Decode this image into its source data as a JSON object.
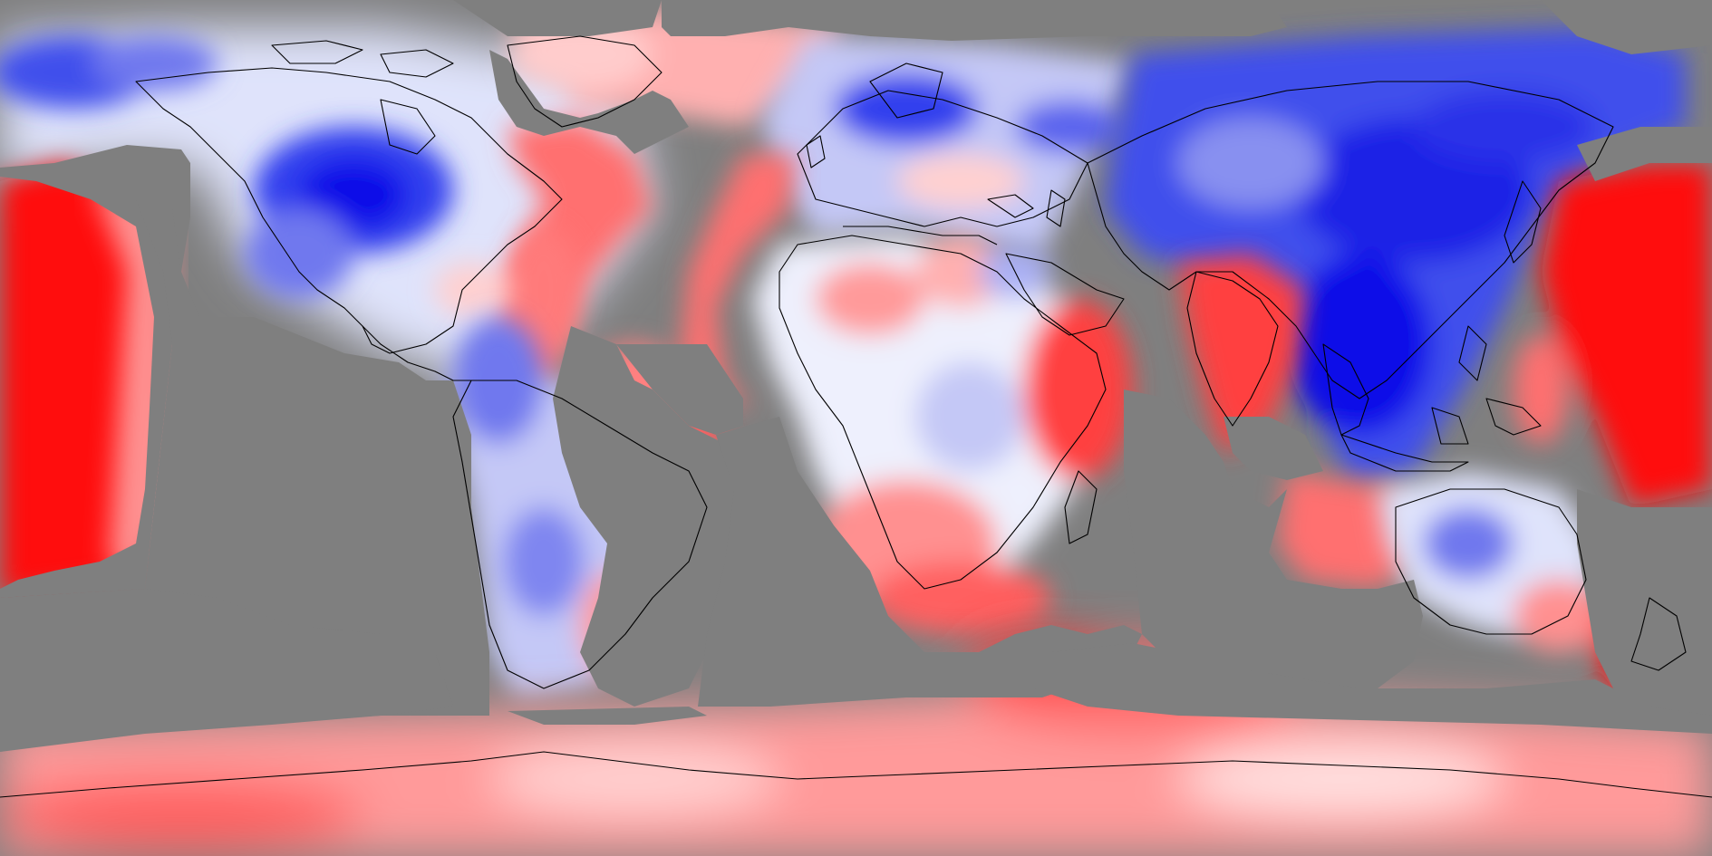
{
  "map": {
    "projection": "equirectangular",
    "colors": {
      "no_data": "#7f7f7f",
      "strong_negative": "#1010e8",
      "negative": "#7f86f0",
      "weak_negative": "#dfe3fb",
      "neutral": "#ffffff",
      "weak_positive": "#ffd2d2",
      "positive": "#ff8a8a",
      "strong_positive": "#ff1010",
      "coastline": "#000000"
    }
  }
}
